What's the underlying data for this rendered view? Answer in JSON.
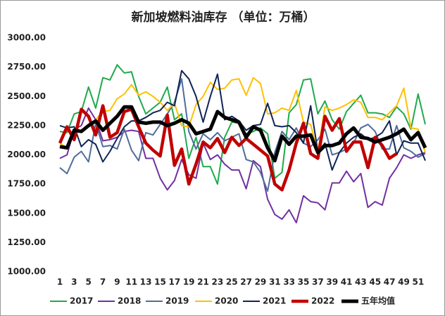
{
  "chart_data": {
    "type": "line",
    "title": "新加坡燃料油库存 （单位：万桶）",
    "categories": [
      1,
      null,
      3,
      null,
      5,
      null,
      7,
      null,
      9,
      null,
      11,
      null,
      13,
      null,
      15,
      null,
      17,
      null,
      19,
      null,
      21,
      null,
      23,
      null,
      25,
      null,
      27,
      null,
      29,
      null,
      31,
      null,
      33,
      null,
      35,
      null,
      37,
      null,
      39,
      null,
      41,
      null,
      43,
      null,
      45,
      null,
      47,
      null,
      49,
      null,
      51,
      null
    ],
    "ylim": [
      1000,
      3000
    ],
    "yticks": [
      {
        "value": 1000,
        "label": "1000.00"
      },
      {
        "value": 1250,
        "label": "1250.00"
      },
      {
        "value": 1500,
        "label": "1500.00"
      },
      {
        "value": 1750,
        "label": "1750.00"
      },
      {
        "value": 2000,
        "label": "2000.00"
      },
      {
        "value": 2250,
        "label": "2250.00"
      },
      {
        "value": 2500,
        "label": "2500.00"
      },
      {
        "value": 2750,
        "label": "2750.00"
      },
      {
        "value": 3000,
        "label": "3000.00"
      }
    ],
    "grid": false,
    "legend": "bottom",
    "series": [
      {
        "name": "2017",
        "color": "#1faa4b",
        "values": [
          2200,
          2190,
          2350,
          2370,
          2580,
          2400,
          2660,
          2640,
          2770,
          2700,
          2710,
          2500,
          2350,
          2400,
          2450,
          2580,
          2300,
          2350,
          1970,
          2150,
          1900,
          1900,
          1750,
          2150,
          2280,
          2270,
          2180,
          2200,
          2230,
          2180,
          1800,
          1850,
          2360,
          2430,
          2640,
          2650,
          2350,
          2460,
          2300,
          2220,
          2370,
          2440,
          2510,
          2360,
          2360,
          2350,
          2320,
          2410,
          2350,
          2220,
          2520,
          2260
        ]
      },
      {
        "name": "2018",
        "color": "#7030a0",
        "values": [
          1970,
          2000,
          2220,
          2250,
          2400,
          2300,
          2120,
          2130,
          2150,
          2200,
          2210,
          2200,
          1970,
          1970,
          1800,
          1700,
          1780,
          1960,
          1830,
          1800,
          2100,
          1960,
          2000,
          1920,
          1870,
          1870,
          1710,
          1950,
          1900,
          1620,
          1490,
          1450,
          1530,
          1420,
          1650,
          1600,
          1590,
          1530,
          1760,
          1760,
          1860,
          1770,
          1840,
          1550,
          1600,
          1570,
          1800,
          1890,
          2000,
          1970,
          2000,
          2020
        ]
      },
      {
        "name": "2019",
        "color": "#4f6d9a",
        "values": [
          1890,
          1840,
          1980,
          2030,
          1940,
          2270,
          2070,
          2080,
          2050,
          2220,
          2040,
          1950,
          2190,
          2170,
          2260,
          2350,
          2450,
          2650,
          2200,
          2050,
          2180,
          2130,
          2190,
          2120,
          2150,
          2180,
          1960,
          1940,
          1850,
          1690,
          2020,
          2200,
          2130,
          2230,
          2100,
          2070,
          2130,
          2220,
          2000,
          2020,
          2050,
          2100,
          2230,
          2260,
          2200,
          2050,
          2050,
          2250,
          2060,
          2030,
          1980,
          2010
        ]
      },
      {
        "name": "2020",
        "color": "#ffc000",
        "values": [
          2100,
          2060,
          2200,
          2200,
          2250,
          2300,
          2370,
          2380,
          2480,
          2520,
          2600,
          2510,
          2540,
          2500,
          2450,
          2380,
          2440,
          2250,
          2240,
          2430,
          2500,
          2620,
          2560,
          2570,
          2640,
          2650,
          2510,
          2660,
          2610,
          2350,
          2360,
          2400,
          2380,
          2550,
          2280,
          2260,
          2020,
          2410,
          2380,
          2400,
          2430,
          2470,
          2450,
          2320,
          2320,
          2300,
          2360,
          2420,
          2570,
          2230,
          2220,
          2020
        ]
      },
      {
        "name": "2021",
        "color": "#0f2454",
        "values": [
          2250,
          2230,
          2240,
          2070,
          2130,
          2090,
          1940,
          2030,
          2140,
          2240,
          2290,
          2290,
          2320,
          2360,
          2380,
          2450,
          2420,
          2720,
          2650,
          2500,
          2280,
          2500,
          2690,
          2300,
          2330,
          2290,
          2210,
          2250,
          2260,
          2440,
          2250,
          2240,
          2250,
          2190,
          2100,
          2420,
          2030,
          2100,
          1870,
          2020,
          2100,
          2150,
          2180,
          2130,
          2150,
          2190,
          2290,
          2000,
          2120,
          2100,
          2100,
          1950
        ]
      },
      {
        "name": "2022",
        "color": "#c00000",
        "values": [
          2100,
          2240,
          2130,
          2390,
          2330,
          2170,
          2420,
          2150,
          2190,
          2370,
          2390,
          2240,
          2100,
          2040,
          1990,
          2340,
          1910,
          2050,
          1750,
          1920,
          2110,
          2060,
          2140,
          2020,
          2150,
          2080,
          2140,
          2090,
          2040,
          1990,
          1750,
          1700,
          1870,
          2100,
          2270,
          2010,
          1970,
          2330,
          2210,
          2310,
          2030,
          2110,
          2110,
          1890,
          2150,
          2080,
          1970,
          2010,
          null,
          null,
          null,
          null
        ]
      },
      {
        "name": "五年均值",
        "color": "#000000",
        "values": [
          2070,
          2060,
          2210,
          2200,
          2250,
          2290,
          2210,
          2270,
          2330,
          2410,
          2410,
          2280,
          2270,
          2280,
          2280,
          2250,
          2270,
          2300,
          2270,
          2180,
          2200,
          2220,
          2370,
          2320,
          2300,
          2280,
          2150,
          2240,
          2210,
          2060,
          1950,
          2160,
          2090,
          2160,
          2160,
          2170,
          2020,
          2080,
          2080,
          2100,
          2180,
          2230,
          2150,
          2140,
          2110,
          2130,
          2150,
          2180,
          2220,
          2130,
          2190,
          2060
        ]
      }
    ]
  }
}
